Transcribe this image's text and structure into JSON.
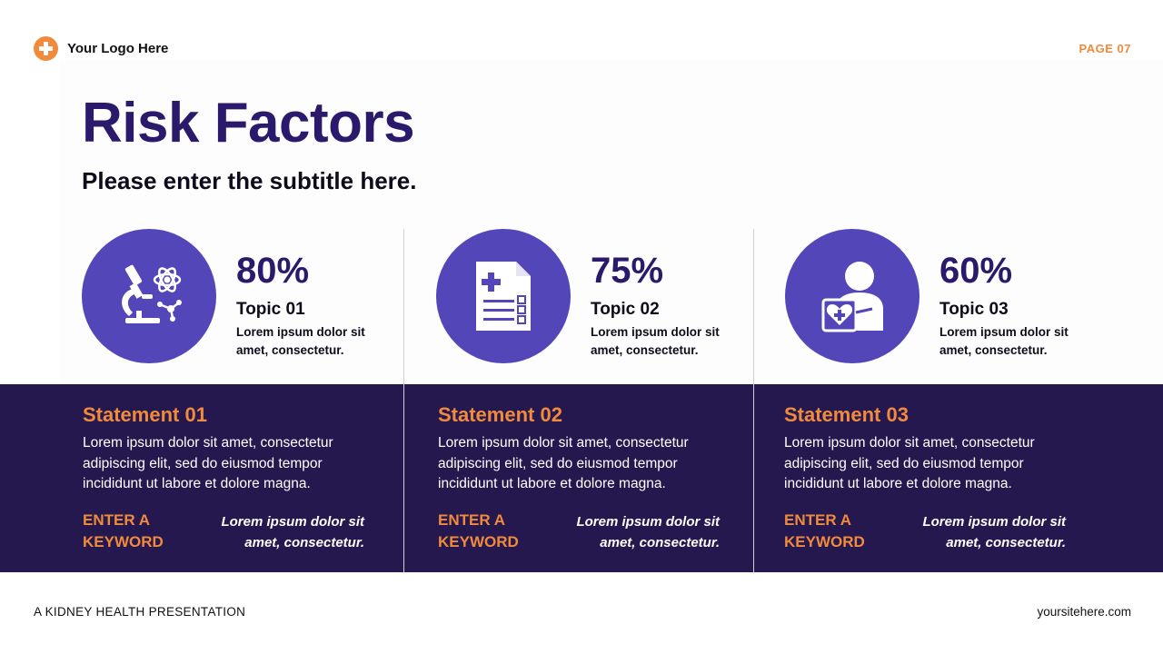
{
  "header": {
    "logo_text": "Your Logo Here",
    "page_label": "PAGE 07"
  },
  "title": "Risk Factors",
  "subtitle": "Please enter the subtitle here.",
  "topics": [
    {
      "percent": "80%",
      "name": "Topic 01",
      "description": "Lorem ipsum dolor sit amet, consectetur.",
      "icon": "microscope-atom-icon"
    },
    {
      "percent": "75%",
      "name": "Topic 02",
      "description": "Lorem ipsum dolor sit amet, consectetur.",
      "icon": "medical-report-icon"
    },
    {
      "percent": "60%",
      "name": "Topic 03",
      "description": "Lorem ipsum dolor sit amet, consectetur.",
      "icon": "person-heart-card-icon"
    }
  ],
  "statements": [
    {
      "title": "Statement 01",
      "body": "Lorem ipsum dolor sit amet, consectetur adipiscing elit, sed do eiusmod tempor incididunt ut labore et dolore magna.",
      "keyword": "ENTER A KEYWORD",
      "italic": "Lorem ipsum dolor sit amet, consectetur."
    },
    {
      "title": "Statement 02",
      "body": "Lorem ipsum dolor sit amet, consectetur adipiscing elit, sed do eiusmod tempor incididunt ut labore et dolore magna.",
      "keyword": "ENTER A KEYWORD",
      "italic": "Lorem ipsum dolor sit amet, consectetur."
    },
    {
      "title": "Statement 03",
      "body": "Lorem ipsum dolor sit amet, consectetur adipiscing elit, sed do eiusmod tempor incididunt ut labore et dolore magna.",
      "keyword": "ENTER A KEYWORD",
      "italic": "Lorem ipsum dolor sit amet, consectetur."
    }
  ],
  "footer": {
    "left": "A KIDNEY HEALTH PRESENTATION",
    "right": "yoursitehere.com"
  },
  "colors": {
    "accent_orange": "#f08a3c",
    "title_purple": "#2b1a6b",
    "circle_purple": "#5346b8",
    "band_navy": "#25184f"
  }
}
